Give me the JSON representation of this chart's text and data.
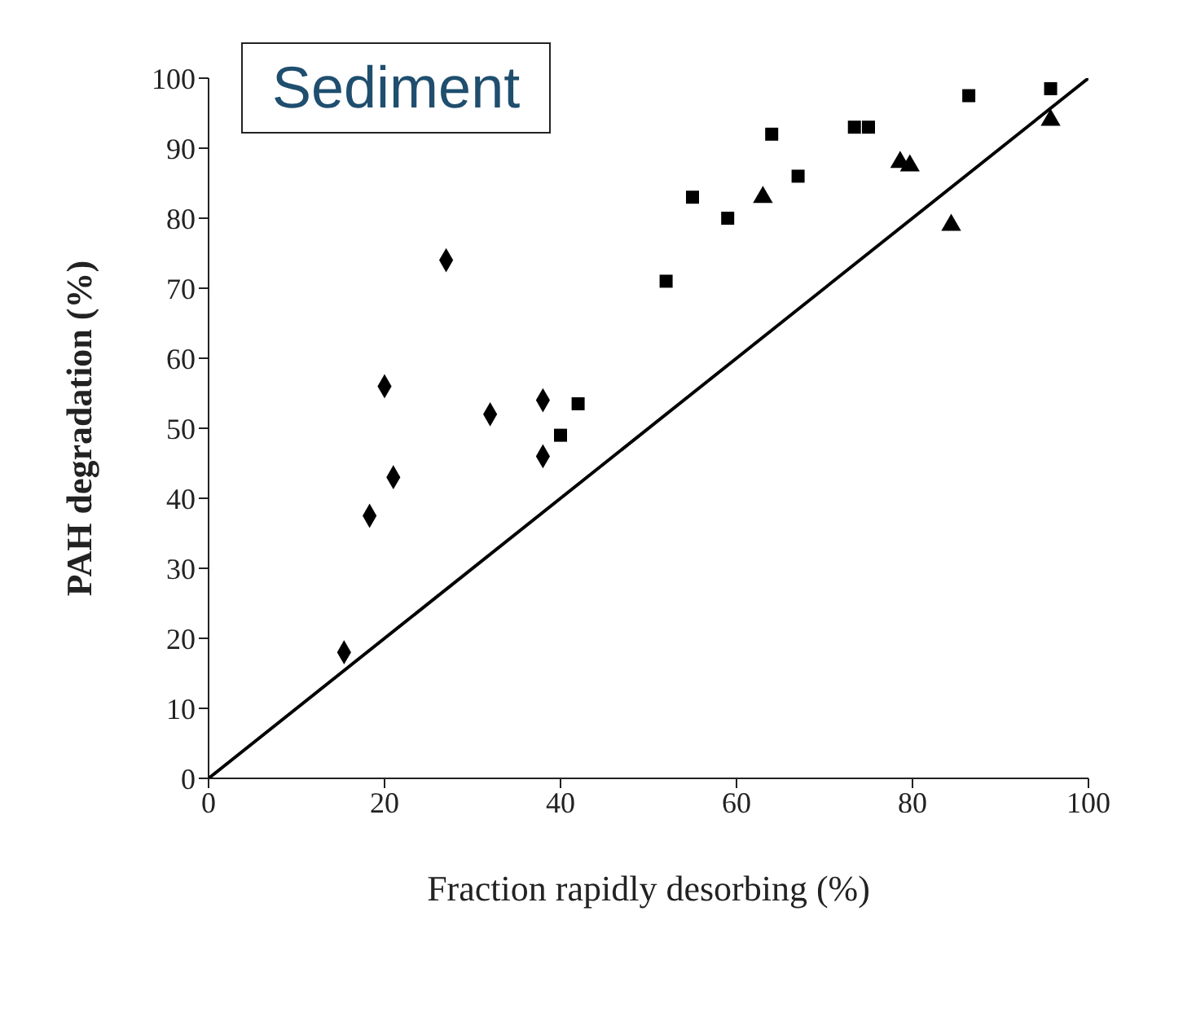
{
  "chart_data": {
    "type": "scatter",
    "title": "Sediment",
    "xlabel": "Fraction rapidly desorbing (%)",
    "ylabel": "PAH degradation (%)",
    "xlim": [
      0,
      100
    ],
    "ylim": [
      0,
      100
    ],
    "xticks": [
      0,
      20,
      40,
      60,
      80,
      100
    ],
    "yticks": [
      0,
      10,
      20,
      30,
      40,
      50,
      60,
      70,
      80,
      90,
      100
    ],
    "grid": false,
    "legend": false,
    "series": [
      {
        "color": "#000000",
        "marker": "diamond",
        "x": [
          15.4,
          18.3,
          20,
          21,
          27,
          32,
          38,
          38
        ],
        "values": [
          18,
          37.5,
          56,
          43,
          74,
          52,
          54,
          46
        ]
      },
      {
        "color": "#000000",
        "marker": "square",
        "x": [
          40,
          42,
          52,
          55,
          59,
          64,
          67,
          73.4,
          75,
          86.4,
          95.7
        ],
        "values": [
          49,
          53.5,
          71,
          83,
          80,
          92,
          86,
          93,
          93,
          97.5,
          98.5
        ]
      },
      {
        "color": "#000000",
        "marker": "triangle",
        "x": [
          63,
          78.6,
          79.7,
          84.4,
          95.7
        ],
        "values": [
          83,
          88,
          87.5,
          79,
          94
        ]
      },
      {
        "type": "line",
        "color": "#000000",
        "marker": "none",
        "x": [
          0,
          100
        ],
        "values": [
          0,
          100
        ]
      }
    ]
  }
}
